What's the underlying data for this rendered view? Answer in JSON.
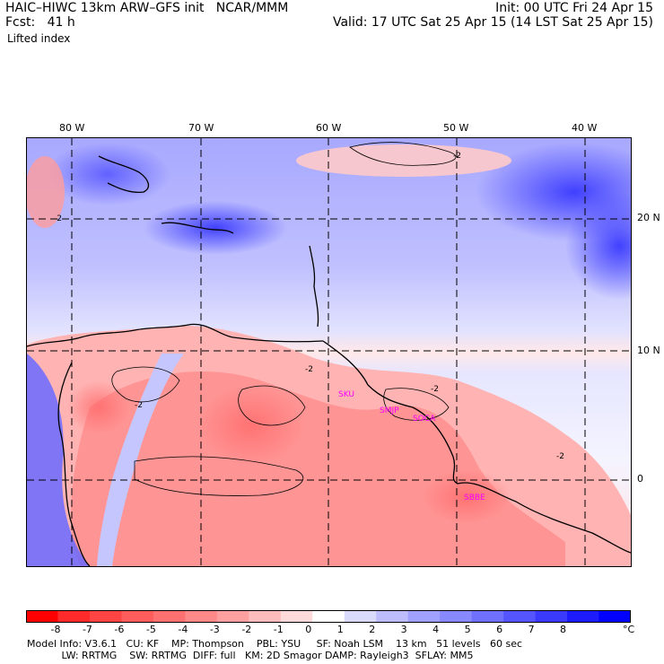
{
  "header": {
    "line1_left": "HAIC–HIWC 13km ARW–GFS init   NCAR/MMM",
    "line1_right": "Init: 00 UTC Fri 24 Apr 15",
    "line2_left": "Fcst:   41 h",
    "line2_right": "Valid: 17 UTC Sat 25 Apr 15 (14 LST Sat 25 Apr 15)",
    "field": "Lifted index"
  },
  "map": {
    "longitude_labels": [
      "80 W",
      "70 W",
      "60 W",
      "50 W",
      "40 W"
    ],
    "latitude_labels": [
      "20 N",
      "10 N",
      "0"
    ],
    "contour_label": "-2",
    "stations": [
      "SKU",
      "SMJP",
      "SOCA",
      "SBBE"
    ]
  },
  "colorbar": {
    "unit": "°C",
    "labels": [
      "-8",
      "-7",
      "-6",
      "-5",
      "-4",
      "-3",
      "-2",
      "-1",
      "0",
      "1",
      "2",
      "3",
      "4",
      "5",
      "6",
      "7",
      "8"
    ],
    "colors": [
      "#ff0000",
      "#ff2a2a",
      "#ff4444",
      "#ff5c5c",
      "#ff7070",
      "#ff8888",
      "#ffa0a0",
      "#ffbcbc",
      "#ffdada",
      "#ffffff",
      "#dadaff",
      "#bcbcff",
      "#a0a0ff",
      "#8888ff",
      "#7070ff",
      "#5555ff",
      "#3a3aff",
      "#1c1cff",
      "#0000ff"
    ]
  },
  "footer": {
    "line1": "Model Info: V3.6.1   CU: KF    MP: Thompson    PBL: YSU     SF: Noah LSM    13 km   51 levels   60 sec",
    "line2": "           LW: RRTMG    SW: RRTMG  DIFF: full   KM: 2D Smagor DAMP: Rayleigh3  SFLAY: MM5"
  }
}
